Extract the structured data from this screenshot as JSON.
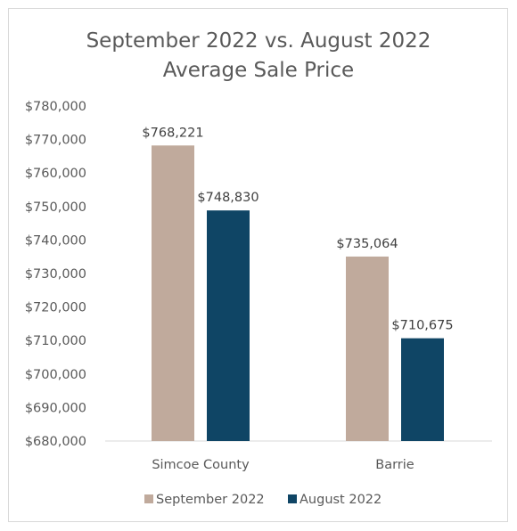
{
  "chart_data": {
    "type": "bar",
    "title": [
      "September 2022 vs. August 2022",
      "Average Sale Price"
    ],
    "categories": [
      "Simcoe County",
      "Barrie"
    ],
    "series": [
      {
        "name": "September 2022",
        "values": [
          768221,
          735064
        ],
        "labels": [
          "$768,221",
          "$735,064"
        ],
        "color": "#c0aa9c"
      },
      {
        "name": "August 2022",
        "values": [
          748830,
          710675
        ],
        "labels": [
          "$748,830",
          "$710,675"
        ],
        "color": "#0f4565"
      }
    ],
    "ylim": [
      680000,
      780000
    ],
    "yticks": [
      680000,
      690000,
      700000,
      710000,
      720000,
      730000,
      740000,
      750000,
      760000,
      770000,
      780000
    ],
    "ytick_labels": [
      "$680,000",
      "$690,000",
      "$700,000",
      "$710,000",
      "$720,000",
      "$730,000",
      "$740,000",
      "$750,000",
      "$760,000",
      "$770,000",
      "$780,000"
    ],
    "grid": false,
    "legend": "bottom",
    "axis_color": "#d9d9d9"
  }
}
